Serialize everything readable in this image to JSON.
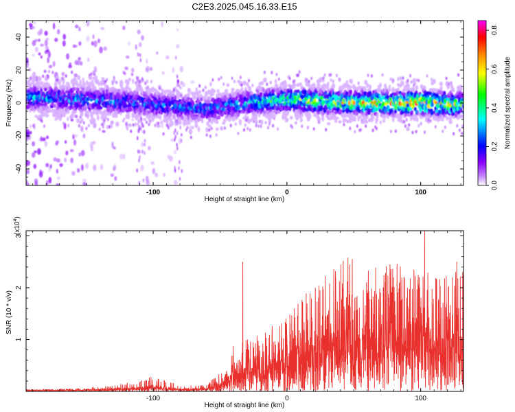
{
  "figure_title": "C2E3.2025.045.16.33.E15",
  "chart_data": [
    {
      "type": "heatmap",
      "xlabel": "Height of straight line (km)",
      "ylabel": "Frequency (Hz)",
      "xlim": [
        -195,
        132
      ],
      "ylim": [
        -50,
        50
      ],
      "x_ticks": [
        -100,
        0,
        100
      ],
      "y_ticks": [
        -40,
        -20,
        0,
        20,
        40
      ],
      "colorbar": {
        "label": "Normalized spectral amplitude",
        "range": [
          0,
          0.85
        ],
        "ticks": [
          0.0,
          0.2,
          0.4,
          0.6,
          0.8
        ],
        "colormap": [
          "#ffffff",
          "#8a00ff",
          "#0000ff",
          "#00ffff",
          "#00ff00",
          "#ffff00",
          "#ff8000",
          "#ff0000",
          "#ff00ff"
        ]
      },
      "band_center_hz": [
        {
          "x": -190,
          "y": 3
        },
        {
          "x": -150,
          "y": 2
        },
        {
          "x": -110,
          "y": 0
        },
        {
          "x": -60,
          "y": -4
        },
        {
          "x": -30,
          "y": 0
        },
        {
          "x": 0,
          "y": 2
        },
        {
          "x": 50,
          "y": 0
        },
        {
          "x": 100,
          "y": 0
        },
        {
          "x": 130,
          "y": -1
        }
      ],
      "band_halfwidth_hz": 8,
      "peak_amplitude": [
        {
          "x": -190,
          "a": 0.35
        },
        {
          "x": -100,
          "a": 0.3
        },
        {
          "x": -40,
          "a": 0.35
        },
        {
          "x": 0,
          "a": 0.55
        },
        {
          "x": 50,
          "a": 0.65
        },
        {
          "x": 100,
          "a": 0.8
        },
        {
          "x": 130,
          "a": 0.6
        }
      ]
    },
    {
      "type": "line",
      "xlabel": "Height of straight line (km)",
      "ylabel": "SNR (10 * v/v)",
      "multiplier_label": "(x10",
      "multiplier_exp": "4",
      "multiplier_close": ")",
      "xlim": [
        -195,
        132
      ],
      "ylim": [
        0,
        3.1
      ],
      "x_ticks": [
        -100,
        0,
        100
      ],
      "y_ticks": [
        1,
        2,
        3
      ],
      "color": "#e8302c",
      "envelope": [
        {
          "x": -195,
          "mean": 0.02,
          "peak": 0.04
        },
        {
          "x": -150,
          "mean": 0.03,
          "peak": 0.06
        },
        {
          "x": -110,
          "mean": 0.06,
          "peak": 0.2
        },
        {
          "x": -100,
          "mean": 0.08,
          "peak": 0.3
        },
        {
          "x": -80,
          "mean": 0.04,
          "peak": 0.12
        },
        {
          "x": -60,
          "mean": 0.05,
          "peak": 0.12
        },
        {
          "x": -50,
          "mean": 0.15,
          "peak": 0.4
        },
        {
          "x": -40,
          "mean": 0.35,
          "peak": 0.9
        },
        {
          "x": -20,
          "mean": 0.5,
          "peak": 1.1
        },
        {
          "x": 0,
          "mean": 0.7,
          "peak": 1.5
        },
        {
          "x": 20,
          "mean": 0.95,
          "peak": 2.1
        },
        {
          "x": 50,
          "mean": 1.2,
          "peak": 2.7
        },
        {
          "x": 80,
          "mean": 1.3,
          "peak": 2.5
        },
        {
          "x": 100,
          "mean": 1.25,
          "peak": 2.3
        },
        {
          "x": 130,
          "mean": 1.0,
          "peak": 2.4
        }
      ],
      "spikes": [
        {
          "x": -33,
          "y": 2.5
        },
        {
          "x": 103,
          "y": 3.1
        },
        {
          "x": 127,
          "y": 2.5
        }
      ]
    }
  ]
}
